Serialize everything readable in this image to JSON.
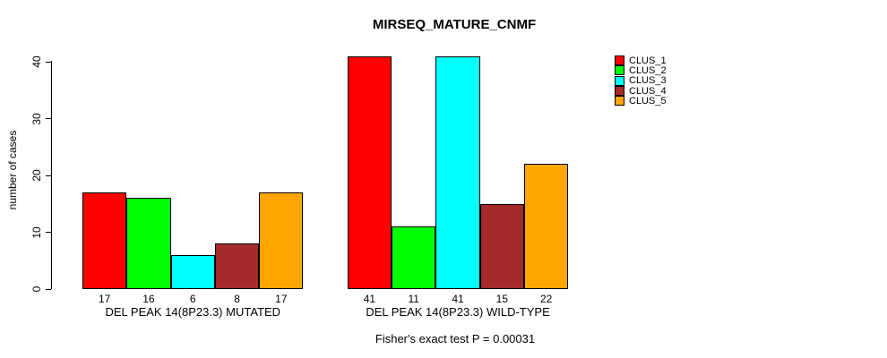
{
  "title": "MIRSEQ_MATURE_CNMF",
  "footer": "Fisher's exact test P = 0.00031",
  "colors": {
    "clus_1": "#FF0000",
    "clus_2": "#00FF00",
    "clus_3": "#00FFFF",
    "clus_4": "#A52A2A",
    "clus_5": "#FFA500",
    "bar_border": "#000000",
    "background": "#FFFFFF",
    "text": "#000000"
  },
  "chart_data": {
    "type": "bar",
    "title": "MIRSEQ_MATURE_CNMF",
    "xlabel": "",
    "ylabel": "number of cases",
    "ylim": [
      0,
      40
    ],
    "yticks": [
      0,
      10,
      20,
      30,
      40
    ],
    "grid": false,
    "legend_position": "right",
    "legend": [
      "CLUS_1",
      "CLUS_2",
      "CLUS_3",
      "CLUS_4",
      "CLUS_5"
    ],
    "series_colors": [
      "#FF0000",
      "#00FF00",
      "#00FFFF",
      "#A52A2A",
      "#FFA500"
    ],
    "groups": [
      {
        "label": "DEL PEAK 14(8P23.3) MUTATED",
        "values": [
          17,
          16,
          6,
          8,
          17
        ]
      },
      {
        "label": "DEL PEAK 14(8P23.3) WILD-TYPE",
        "values": [
          41,
          11,
          41,
          15,
          22
        ]
      }
    ],
    "bar_value_labels": [
      [
        17,
        16,
        6,
        8,
        17
      ],
      [
        41,
        11,
        41,
        15,
        22
      ]
    ],
    "annotation": "Fisher's exact test P = 0.00031"
  }
}
